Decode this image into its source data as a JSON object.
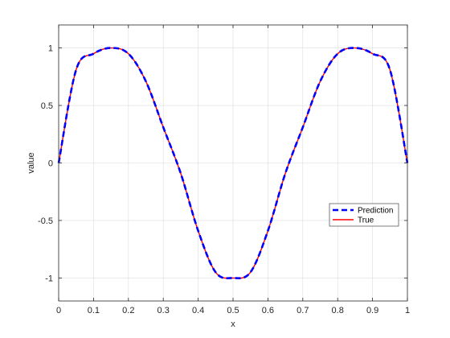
{
  "chart_data": {
    "type": "line",
    "title": "",
    "xlabel": "x",
    "ylabel": "value",
    "xlim": [
      0,
      1
    ],
    "ylim": [
      -1.2,
      1.2
    ],
    "xticks": [
      0,
      0.1,
      0.2,
      0.3,
      0.4,
      0.5,
      0.6,
      0.7,
      0.8,
      0.9,
      1
    ],
    "xtick_labels": [
      "0",
      "0.1",
      "0.2",
      "0.3",
      "0.4",
      "0.5",
      "0.6",
      "0.7",
      "0.8",
      "0.9",
      "1"
    ],
    "yticks": [
      -1,
      -0.5,
      0,
      0.5,
      1
    ],
    "ytick_labels": [
      "-1",
      "-0.5",
      "0",
      "0.5",
      "1"
    ],
    "grid": true,
    "legend_position": "lower-right",
    "series": [
      {
        "name": "Prediction",
        "color": "#0000ff",
        "style": "dashed",
        "x": [
          0,
          0.05,
          0.1,
          0.15,
          0.2,
          0.25,
          0.3,
          0.35,
          0.4,
          0.45,
          0.5,
          0.55,
          0.6,
          0.65,
          0.7,
          0.75,
          0.8,
          0.85,
          0.9,
          0.95,
          1
        ],
        "y": [
          0,
          0.81,
          0.95,
          1.0,
          0.95,
          0.71,
          0.31,
          -0.09,
          -0.59,
          -0.95,
          -1.0,
          -0.95,
          -0.59,
          -0.09,
          0.31,
          0.71,
          0.95,
          1.0,
          0.95,
          0.81,
          0
        ]
      },
      {
        "name": "True",
        "color": "#ff0000",
        "style": "solid",
        "x": [
          0,
          0.05,
          0.1,
          0.15,
          0.2,
          0.25,
          0.3,
          0.35,
          0.4,
          0.45,
          0.5,
          0.55,
          0.6,
          0.65,
          0.7,
          0.75,
          0.8,
          0.85,
          0.9,
          0.95,
          1
        ],
        "y": [
          0,
          0.81,
          0.95,
          1.0,
          0.95,
          0.71,
          0.31,
          -0.09,
          -0.59,
          -0.95,
          -1.0,
          -0.95,
          -0.59,
          -0.09,
          0.31,
          0.71,
          0.95,
          1.0,
          0.95,
          0.81,
          0
        ]
      }
    ]
  }
}
